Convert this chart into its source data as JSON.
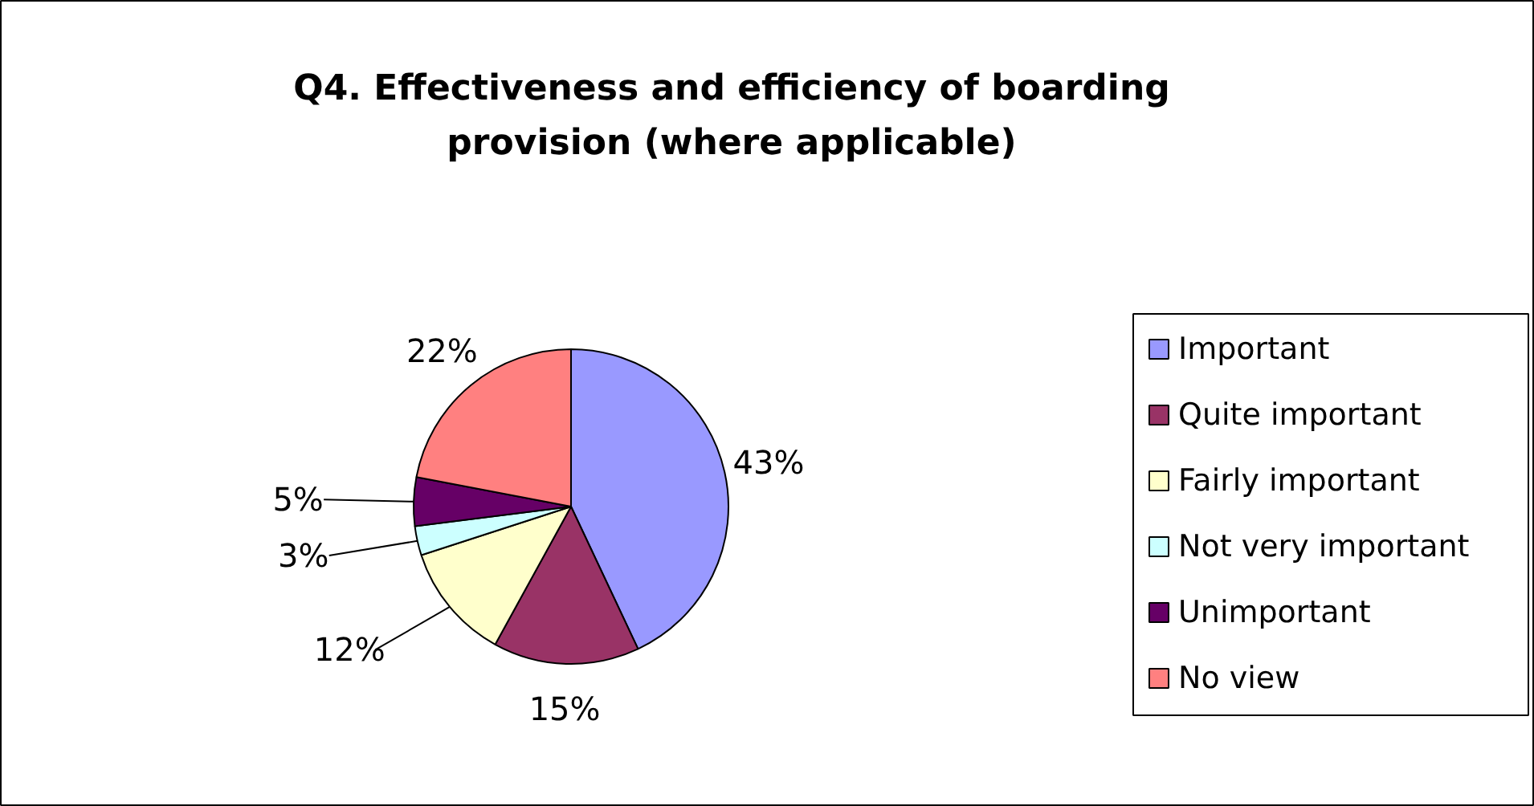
{
  "chart_data": {
    "type": "pie",
    "title": "Q4. Effectiveness and efficiency of boarding provision (where applicable)",
    "categories": [
      "Important",
      "Quite important",
      "Fairly important",
      "Not very important",
      "Unimportant",
      "No view"
    ],
    "values": [
      43,
      15,
      12,
      3,
      5,
      22
    ],
    "colors": [
      "#9999ff",
      "#993366",
      "#ffffcc",
      "#ccffff",
      "#660066",
      "#ff8080"
    ],
    "value_labels": [
      "43%",
      "15%",
      "12%",
      "3%",
      "5%",
      "22%"
    ],
    "legend": "right"
  }
}
